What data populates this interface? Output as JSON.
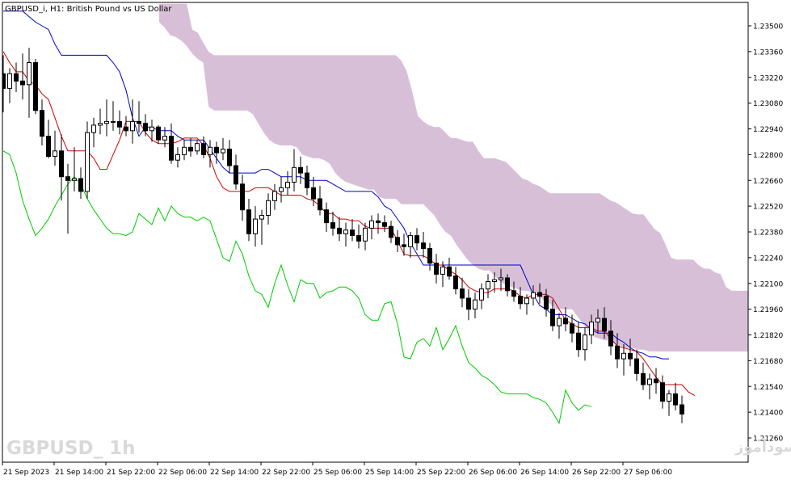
{
  "header": {
    "title": "GBPUSD_i, H1:  British Pound vs US Dollar"
  },
  "watermark": {
    "symbol_label": "GBPUSD_ 1h",
    "site_label": "انتشار در سایت سودآموز"
  },
  "colors": {
    "background": "#ffffff",
    "frame": "#000000",
    "bull_candle": "#ffffff",
    "bear_candle": "#000000",
    "kijun": "#0000cc",
    "tenkan": "#cc0000",
    "chikou": "#00cc00",
    "cloud": "#d8bfd8"
  },
  "chart_data": {
    "type": "candlestick",
    "title": "GBPUSD_i, H1:  British Pound vs US Dollar",
    "y_ticks": [
      "1.23500",
      "1.23360",
      "1.23220",
      "1.23080",
      "1.22940",
      "1.22800",
      "1.22660",
      "1.22520",
      "1.22380",
      "1.22240",
      "1.22100",
      "1.21960",
      "1.21820",
      "1.21680",
      "1.21540",
      "1.21400",
      "1.21260"
    ],
    "ylim": [
      1.2114,
      1.2362
    ],
    "x_ticks": [
      "21 Sep 2023",
      "21 Sep 14:00",
      "21 Sep 22:00",
      "22 Sep 06:00",
      "22 Sep 14:00",
      "22 Sep 22:00",
      "25 Sep 06:00",
      "25 Sep 14:00",
      "25 Sep 22:00",
      "26 Sep 06:00",
      "26 Sep 14:00",
      "26 Sep 22:00",
      "27 Sep 06:00"
    ],
    "candles": [
      [
        1.2324,
        1.2334,
        1.2303,
        1.2316
      ],
      [
        1.2316,
        1.2327,
        1.2308,
        1.2324
      ],
      [
        1.2324,
        1.233,
        1.2314,
        1.232
      ],
      [
        1.232,
        1.2335,
        1.231,
        1.2318
      ],
      [
        1.2318,
        1.2338,
        1.23,
        1.233
      ],
      [
        1.233,
        1.2332,
        1.2302,
        1.2304
      ],
      [
        1.2304,
        1.231,
        1.2285,
        1.229
      ],
      [
        1.229,
        1.2299,
        1.2278,
        1.2279
      ],
      [
        1.2279,
        1.2293,
        1.2274,
        1.2282
      ],
      [
        1.2282,
        1.2291,
        1.2255,
        1.2268
      ],
      [
        1.2268,
        1.2275,
        1.2237,
        1.2266
      ],
      [
        1.2266,
        1.2284,
        1.226,
        1.2267
      ],
      [
        1.2267,
        1.2273,
        1.2256,
        1.226
      ],
      [
        1.226,
        1.2298,
        1.2256,
        1.2292
      ],
      [
        1.2292,
        1.23,
        1.2284,
        1.2296
      ],
      [
        1.2296,
        1.2305,
        1.2291,
        1.2297
      ],
      [
        1.2297,
        1.231,
        1.229,
        1.2298
      ],
      [
        1.2298,
        1.2309,
        1.2293,
        1.2298
      ],
      [
        1.2298,
        1.2304,
        1.2291,
        1.2295
      ],
      [
        1.2295,
        1.2301,
        1.229,
        1.2293
      ],
      [
        1.2293,
        1.231,
        1.2286,
        1.2298
      ],
      [
        1.2298,
        1.2309,
        1.2292,
        1.2297
      ],
      [
        1.2297,
        1.2302,
        1.229,
        1.2293
      ],
      [
        1.2293,
        1.2299,
        1.2287,
        1.2295
      ],
      [
        1.2295,
        1.2296,
        1.2286,
        1.2288
      ],
      [
        1.2288,
        1.2295,
        1.2284,
        1.229
      ],
      [
        1.229,
        1.2297,
        1.2275,
        1.2277
      ],
      [
        1.2277,
        1.2284,
        1.2273,
        1.228
      ],
      [
        1.228,
        1.2288,
        1.2277,
        1.2284
      ],
      [
        1.2284,
        1.2289,
        1.2279,
        1.2282
      ],
      [
        1.2282,
        1.2288,
        1.228,
        1.2286
      ],
      [
        1.2286,
        1.229,
        1.2278,
        1.228
      ],
      [
        1.228,
        1.2288,
        1.2273,
        1.2284
      ],
      [
        1.2284,
        1.2287,
        1.2275,
        1.2281
      ],
      [
        1.2281,
        1.2289,
        1.2277,
        1.2283
      ],
      [
        1.2283,
        1.2288,
        1.227,
        1.2274
      ],
      [
        1.2274,
        1.228,
        1.2261,
        1.2264
      ],
      [
        1.2264,
        1.2269,
        1.2244,
        1.225
      ],
      [
        1.225,
        1.2256,
        1.2233,
        1.2237
      ],
      [
        1.2237,
        1.2252,
        1.223,
        1.2245
      ],
      [
        1.2245,
        1.225,
        1.2231,
        1.2247
      ],
      [
        1.2247,
        1.2259,
        1.2242,
        1.2255
      ],
      [
        1.2255,
        1.2264,
        1.225,
        1.226
      ],
      [
        1.226,
        1.2268,
        1.2254,
        1.2262
      ],
      [
        1.2262,
        1.2271,
        1.2258,
        1.2265
      ],
      [
        1.2265,
        1.2283,
        1.226,
        1.2273
      ],
      [
        1.2273,
        1.2279,
        1.2264,
        1.227
      ],
      [
        1.227,
        1.2274,
        1.2258,
        1.2262
      ],
      [
        1.2262,
        1.2268,
        1.2252,
        1.2256
      ],
      [
        1.2256,
        1.2263,
        1.2247,
        1.225
      ],
      [
        1.225,
        1.2254,
        1.2238,
        1.2243
      ],
      [
        1.2243,
        1.2249,
        1.2236,
        1.224
      ],
      [
        1.224,
        1.2246,
        1.2233,
        1.2237
      ],
      [
        1.2237,
        1.2243,
        1.223,
        1.2239
      ],
      [
        1.2239,
        1.2245,
        1.2233,
        1.2236
      ],
      [
        1.2236,
        1.2242,
        1.2229,
        1.2233
      ],
      [
        1.2233,
        1.2243,
        1.2228,
        1.224
      ],
      [
        1.224,
        1.2247,
        1.2234,
        1.2244
      ],
      [
        1.2244,
        1.2248,
        1.2237,
        1.2243
      ],
      [
        1.2243,
        1.2247,
        1.2238,
        1.2241
      ],
      [
        1.2241,
        1.2244,
        1.2232,
        1.2235
      ],
      [
        1.2235,
        1.2239,
        1.2227,
        1.2231
      ],
      [
        1.2231,
        1.2237,
        1.2225,
        1.223
      ],
      [
        1.223,
        1.2238,
        1.2224,
        1.2236
      ],
      [
        1.2236,
        1.224,
        1.2228,
        1.2232
      ],
      [
        1.2232,
        1.2238,
        1.2224,
        1.2229
      ],
      [
        1.2229,
        1.2232,
        1.2217,
        1.2221
      ],
      [
        1.2221,
        1.2226,
        1.221,
        1.2215
      ],
      [
        1.2215,
        1.2222,
        1.2208,
        1.2219
      ],
      [
        1.2219,
        1.2224,
        1.2212,
        1.2214
      ],
      [
        1.2214,
        1.2219,
        1.2204,
        1.2207
      ],
      [
        1.2207,
        1.2213,
        1.2197,
        1.2202
      ],
      [
        1.2202,
        1.2207,
        1.219,
        1.2196
      ],
      [
        1.2196,
        1.2205,
        1.2191,
        1.2201
      ],
      [
        1.2201,
        1.221,
        1.2196,
        1.2207
      ],
      [
        1.2207,
        1.2215,
        1.2202,
        1.2211
      ],
      [
        1.2211,
        1.2216,
        1.2205,
        1.2212
      ],
      [
        1.2212,
        1.2218,
        1.2206,
        1.2213
      ],
      [
        1.2213,
        1.2215,
        1.2203,
        1.2206
      ],
      [
        1.2206,
        1.2211,
        1.22,
        1.2203
      ],
      [
        1.2203,
        1.2208,
        1.2196,
        1.2199
      ],
      [
        1.2199,
        1.2204,
        1.2193,
        1.2202
      ],
      [
        1.2202,
        1.2209,
        1.2198,
        1.2205
      ],
      [
        1.2205,
        1.221,
        1.2199,
        1.2203
      ],
      [
        1.2203,
        1.2207,
        1.2192,
        1.2196
      ],
      [
        1.2196,
        1.2201,
        1.2184,
        1.2187
      ],
      [
        1.2187,
        1.2194,
        1.218,
        1.2191
      ],
      [
        1.2191,
        1.2197,
        1.2184,
        1.2188
      ],
      [
        1.2188,
        1.2193,
        1.2178,
        1.2183
      ],
      [
        1.2183,
        1.2189,
        1.217,
        1.2174
      ],
      [
        1.2174,
        1.2186,
        1.2168,
        1.2182
      ],
      [
        1.2182,
        1.2193,
        1.2177,
        1.2189
      ],
      [
        1.2189,
        1.2196,
        1.2183,
        1.2191
      ],
      [
        1.2191,
        1.2197,
        1.218,
        1.2184
      ],
      [
        1.2184,
        1.219,
        1.2171,
        1.2176
      ],
      [
        1.2176,
        1.2183,
        1.2164,
        1.2169
      ],
      [
        1.2169,
        1.2177,
        1.216,
        1.2172
      ],
      [
        1.2172,
        1.218,
        1.2165,
        1.2169
      ],
      [
        1.2169,
        1.2174,
        1.2157,
        1.2161
      ],
      [
        1.2161,
        1.2167,
        1.2152,
        1.2155
      ],
      [
        1.2155,
        1.2161,
        1.2147,
        1.2158
      ],
      [
        1.2158,
        1.2164,
        1.215,
        1.2156
      ],
      [
        1.2156,
        1.216,
        1.2142,
        1.2146
      ],
      [
        1.2146,
        1.2152,
        1.2138,
        1.215
      ],
      [
        1.215,
        1.2156,
        1.2141,
        1.2144
      ],
      [
        1.2144,
        1.2149,
        1.2134,
        1.2139
      ]
    ],
    "series": [
      {
        "name": "kijun",
        "values": [
          1.2358,
          1.2358,
          1.2358,
          1.2358,
          1.2355,
          1.2352,
          1.235,
          1.2348,
          1.234,
          1.2334,
          1.2334,
          1.2334,
          1.2334,
          1.2334,
          1.2334,
          1.2334,
          1.2334,
          1.233,
          1.2325,
          1.2315,
          1.23,
          1.229,
          1.2295,
          1.2295,
          1.2293,
          1.2293,
          1.2293,
          1.229,
          1.2288,
          1.2288,
          1.2288,
          1.2288,
          1.2283,
          1.2278,
          1.2273,
          1.227,
          1.227,
          1.227,
          1.227,
          1.227,
          1.2272,
          1.2272,
          1.227,
          1.2268,
          1.2268,
          1.2268,
          1.2268,
          1.2266,
          1.2266,
          1.2266,
          1.2266,
          1.2264,
          1.2262,
          1.226,
          1.226,
          1.226,
          1.226,
          1.226,
          1.2257,
          1.2252,
          1.225,
          1.2245,
          1.224,
          1.2232,
          1.2226,
          1.222,
          1.222,
          1.222,
          1.222,
          1.222,
          1.222,
          1.222,
          1.222,
          1.222,
          1.222,
          1.222,
          1.222,
          1.222,
          1.222,
          1.222,
          1.222,
          1.2212,
          1.2204,
          1.2198,
          1.2196,
          1.2193,
          1.2193,
          1.2193,
          1.2191,
          1.2189,
          1.2188,
          1.2185,
          1.2183,
          1.2183,
          1.2183,
          1.218,
          1.2178,
          1.2175,
          1.2173,
          1.2172,
          1.217,
          1.217,
          1.2169,
          1.2169
        ]
      },
      {
        "name": "tenkan",
        "values": [
          1.2336,
          1.233,
          1.2325,
          1.2325,
          1.232,
          1.2318,
          1.2313,
          1.231,
          1.23,
          1.229,
          1.2282,
          1.2282,
          1.2282,
          1.2282,
          1.2278,
          1.2272,
          1.2272,
          1.228,
          1.2288,
          1.2298,
          1.2298,
          1.2298,
          1.2292,
          1.2288,
          1.2286,
          1.2286,
          1.2286,
          1.2287,
          1.2289,
          1.2289,
          1.2289,
          1.2285,
          1.2278,
          1.2268,
          1.2262,
          1.226,
          1.226,
          1.226,
          1.226,
          1.2262,
          1.2262,
          1.2262,
          1.226,
          1.2258,
          1.2258,
          1.2258,
          1.2258,
          1.2256,
          1.2255,
          1.2252,
          1.2248,
          1.2248,
          1.2245,
          1.2245,
          1.2244,
          1.2244,
          1.2241,
          1.224,
          1.224,
          1.224,
          1.224,
          1.2233,
          1.2226,
          1.2225,
          1.2225,
          1.2225,
          1.2223,
          1.222,
          1.222,
          1.2217,
          1.2215,
          1.2212,
          1.2208,
          1.2206,
          1.2205,
          1.2205,
          1.2207,
          1.2207,
          1.2207,
          1.2206,
          1.2203,
          1.2202,
          1.2204,
          1.2204,
          1.2204,
          1.2202,
          1.2196,
          1.219,
          1.2188,
          1.2186,
          1.2186,
          1.2186,
          1.2184,
          1.2184,
          1.218,
          1.2176,
          1.2175,
          1.2174,
          1.2173,
          1.2169,
          1.2164,
          1.2159,
          1.2155,
          1.2155,
          1.2155,
          1.2155,
          1.2151,
          1.2149
        ]
      },
      {
        "name": "chikou",
        "values": [
          1.2282,
          1.228,
          1.227,
          1.2255,
          1.2245,
          1.2236,
          1.224,
          1.2245,
          1.2252,
          1.2258,
          1.2264,
          1.2268,
          1.2264,
          1.2256,
          1.225,
          1.2245,
          1.224,
          1.2237,
          1.2237,
          1.2236,
          1.2238,
          1.2248,
          1.2245,
          1.2242,
          1.2251,
          1.2244,
          1.2252,
          1.2248,
          1.2246,
          1.2246,
          1.2244,
          1.2246,
          1.2244,
          1.2234,
          1.2224,
          1.2222,
          1.2233,
          1.2226,
          1.2214,
          1.2206,
          1.2204,
          1.2197,
          1.221,
          1.222,
          1.2209,
          1.22,
          1.2212,
          1.221,
          1.221,
          1.2202,
          1.2205,
          1.2206,
          1.2208,
          1.2208,
          1.2206,
          1.2202,
          1.2193,
          1.219,
          1.219,
          1.2199,
          1.22,
          1.2188,
          1.217,
          1.2169,
          1.2178,
          1.218,
          1.2176,
          1.2186,
          1.2174,
          1.218,
          1.2187,
          1.2176,
          1.2167,
          1.2164,
          1.216,
          1.2158,
          1.2155,
          1.2151,
          1.215,
          1.215,
          1.215,
          1.215,
          1.2148,
          1.2147,
          1.2145,
          1.214,
          1.2134,
          1.2152,
          1.2145,
          1.2141,
          1.2144,
          1.2143
        ]
      }
    ],
    "cloud": {
      "span_a": [
        1.2362,
        1.2362,
        1.2362,
        1.2362,
        1.2362,
        1.2362,
        1.2348,
        1.23463,
        1.2341,
        1.23358,
        1.2334,
        1.2334,
        1.2334,
        1.2334,
        1.2334,
        1.2334,
        1.2334,
        1.2334,
        1.2334,
        1.2334,
        1.2334,
        1.2334,
        1.2334,
        1.2334,
        1.2334,
        1.2334,
        1.2334,
        1.2334,
        1.2334,
        1.2334,
        1.2334,
        1.2334,
        1.2334,
        1.2334,
        1.2334,
        1.2334,
        1.2334,
        1.2334,
        1.2334,
        1.2334,
        1.2334,
        1.2334,
        1.2334,
        1.2334,
        1.2331,
        1.2325,
        1.2314,
        1.2301,
        1.2298,
        1.2296,
        1.2295,
        1.2295,
        1.2292,
        1.2289,
        1.2289,
        1.2288,
        1.2287,
        1.2287,
        1.2282,
        1.2278,
        1.2278,
        1.2278,
        1.2277,
        1.2276,
        1.2273,
        1.227,
        1.2267,
        1.2266,
        1.2264,
        1.2263,
        1.2261,
        1.2259,
        1.2259,
        1.2259,
        1.2259,
        1.2259,
        1.2259,
        1.2259,
        1.2259,
        1.2259,
        1.2259,
        1.2257,
        1.2255,
        1.2254,
        1.2252,
        1.225,
        1.2248,
        1.22475,
        1.22475,
        1.22435,
        1.22395,
        1.22375,
        1.2231,
        1.2224,
        1.2223,
        1.2223,
        1.2223,
        1.2223,
        1.222,
        1.2218,
        1.2218,
        1.2216,
        1.2215,
        1.2208,
        1.2206,
        1.2206,
        1.2206,
        1.2206,
        1.2202,
        1.2198,
        1.2195,
        1.2195,
        1.2192
      ],
      "span_b": [
        1.2352,
        1.2349,
        1.2345,
        1.2344,
        1.2342,
        1.2339,
        1.2335,
        1.2332,
        1.233,
        1.2306,
        1.2304,
        1.2304,
        1.2304,
        1.2304,
        1.2304,
        1.2304,
        1.2304,
        1.2302,
        1.2297,
        1.2292,
        1.2288,
        1.2286,
        1.2285,
        1.2285,
        1.2285,
        1.2284,
        1.228,
        1.2279,
        1.2278,
        1.2278,
        1.2277,
        1.2275,
        1.227,
        1.2267,
        1.2265,
        1.2264,
        1.2263,
        1.2262,
        1.2261,
        1.2261,
        1.2257,
        1.2256,
        1.2256,
        1.2256,
        1.2253,
        1.2253,
        1.2253,
        1.2253,
        1.2253,
        1.225,
        1.2247,
        1.2242,
        1.2238,
        1.2236,
        1.2231,
        1.2227,
        1.2223,
        1.222,
        1.2218,
        1.2217,
        1.2217,
        1.2214,
        1.2211,
        1.2209,
        1.2208,
        1.2207,
        1.2206,
        1.2206,
        1.2205,
        1.2204,
        1.22,
        1.2199,
        1.2196,
        1.2196,
        1.2196,
        1.2196,
        1.2192,
        1.2188,
        1.2184,
        1.2181,
        1.218,
        1.2179,
        1.2179,
        1.2177,
        1.2176,
        1.2175,
        1.2175,
        1.2174,
        1.2174,
        1.2173,
        1.2173,
        1.2173,
        1.2173,
        1.2173,
        1.2173,
        1.2173,
        1.2173,
        1.2173,
        1.2173,
        1.2173,
        1.2173,
        1.2173,
        1.2173,
        1.2173,
        1.2173,
        1.2173,
        1.2173,
        1.2173,
        1.2173,
        1.2173,
        1.2173,
        1.2173,
        1.2173
      ]
    },
    "grid": false
  }
}
